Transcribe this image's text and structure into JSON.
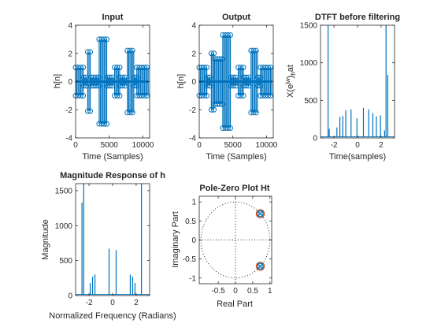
{
  "figure": {
    "colors": {
      "series": "#0072BD",
      "pole": "#D95319",
      "axis": "#262626",
      "background": "#ffffff"
    }
  },
  "chart_data": [
    {
      "type": "scatter",
      "title": "Input",
      "xlabel": "Time (Samples)",
      "ylabel": "h[n]",
      "xlim": [
        0,
        11000
      ],
      "ylim": [
        -4,
        4
      ],
      "xticks": [
        "0",
        "5000",
        "10000"
      ],
      "yticks": [
        "-4",
        "-2",
        "0",
        "2",
        "4"
      ],
      "marker": "circle-stem",
      "grid": false,
      "bands": [
        {
          "x": [
            0,
            1200
          ],
          "y": [
            -1,
            1
          ]
        },
        {
          "x": [
            1200,
            1800
          ],
          "y": [
            -0.3,
            0.3
          ]
        },
        {
          "x": [
            1800,
            2300
          ],
          "y": [
            -2.1,
            2.1
          ]
        },
        {
          "x": [
            2300,
            3500
          ],
          "y": [
            -0.3,
            0.3
          ]
        },
        {
          "x": [
            3500,
            4700
          ],
          "y": [
            -3,
            3
          ]
        },
        {
          "x": [
            4700,
            5800
          ],
          "y": [
            -0.3,
            0.3
          ]
        },
        {
          "x": [
            5800,
            6600
          ],
          "y": [
            -1,
            1
          ]
        },
        {
          "x": [
            6600,
            7700
          ],
          "y": [
            -0.3,
            0.3
          ]
        },
        {
          "x": [
            7700,
            8700
          ],
          "y": [
            -2.2,
            2.2
          ]
        },
        {
          "x": [
            8700,
            9100
          ],
          "y": [
            -0.3,
            0.3
          ]
        },
        {
          "x": [
            9100,
            10800
          ],
          "y": [
            -1,
            1
          ]
        }
      ]
    },
    {
      "type": "scatter",
      "title": "Output",
      "xlabel": "Time (Samples)",
      "ylabel": "h[n]",
      "xlim": [
        0,
        11000
      ],
      "ylim": [
        -4,
        4
      ],
      "xticks": [
        "0",
        "5000",
        "10000"
      ],
      "yticks": [
        "-4",
        "-2",
        "0",
        "2",
        "4"
      ],
      "marker": "circle-stem",
      "grid": false,
      "bands": [
        {
          "x": [
            0,
            1200
          ],
          "y": [
            -1,
            1
          ]
        },
        {
          "x": [
            1200,
            1800
          ],
          "y": [
            -0.3,
            0.3
          ]
        },
        {
          "x": [
            1800,
            2300
          ],
          "y": [
            -2,
            2
          ]
        },
        {
          "x": [
            2300,
            3500
          ],
          "y": [
            -1.6,
            1.6
          ]
        },
        {
          "x": [
            3500,
            4700
          ],
          "y": [
            -3.3,
            3.3
          ]
        },
        {
          "x": [
            4700,
            5800
          ],
          "y": [
            -0.3,
            0.3
          ]
        },
        {
          "x": [
            5800,
            6600
          ],
          "y": [
            -1,
            1
          ]
        },
        {
          "x": [
            6600,
            7700
          ],
          "y": [
            -0.3,
            0.3
          ]
        },
        {
          "x": [
            7700,
            8700
          ],
          "y": [
            -2.2,
            2.2
          ]
        },
        {
          "x": [
            8700,
            9100
          ],
          "y": [
            -0.3,
            0.3
          ]
        },
        {
          "x": [
            9100,
            10800
          ],
          "y": [
            -1,
            1
          ]
        }
      ]
    },
    {
      "type": "line",
      "title": "DTFT before filtering",
      "xlabel": "Time(samples)",
      "ylabel_parts": [
        "X(e",
        "jw",
        ")",
        "h",
        "at"
      ],
      "xlim": [
        -3.14159,
        3.14159
      ],
      "ylim": [
        0,
        1500
      ],
      "xticks": [
        "-2",
        "0",
        "2"
      ],
      "xtick_values": [
        -2,
        0,
        2
      ],
      "yticks": [
        "0",
        "500",
        "1000",
        "1500"
      ],
      "ytick_values": [
        0,
        500,
        1000,
        1500
      ],
      "baseline": 15,
      "grid": false,
      "spikes": [
        {
          "x": -2.5,
          "y": 1580
        },
        {
          "x": -2.4,
          "y": 120
        },
        {
          "x": -1.75,
          "y": 140
        },
        {
          "x": -1.5,
          "y": 280
        },
        {
          "x": -1.25,
          "y": 290
        },
        {
          "x": -1.0,
          "y": 370
        },
        {
          "x": -0.55,
          "y": 380
        },
        {
          "x": -0.05,
          "y": 260
        },
        {
          "x": 0.5,
          "y": 400
        },
        {
          "x": 0.95,
          "y": 380
        },
        {
          "x": 1.3,
          "y": 330
        },
        {
          "x": 1.6,
          "y": 290
        },
        {
          "x": 1.95,
          "y": 300
        },
        {
          "x": 2.3,
          "y": 100
        },
        {
          "x": 2.42,
          "y": 1580
        },
        {
          "x": 2.57,
          "y": 840
        }
      ]
    },
    {
      "type": "line",
      "title": "Magnitude Response of h",
      "xlabel": "Normalized Frequency (Radians)",
      "ylabel": "Magnitude",
      "xlim": [
        -3.14159,
        3.14159
      ],
      "ylim": [
        0,
        1600
      ],
      "xticks": [
        "-2",
        "0",
        "2"
      ],
      "xtick_values": [
        -2,
        0,
        2
      ],
      "yticks": [
        "0",
        "500",
        "1000",
        "1500"
      ],
      "ytick_values": [
        0,
        500,
        1000,
        1500
      ],
      "baseline": 15,
      "grid": false,
      "spikes": [
        {
          "x": -2.6,
          "y": 1330
        },
        {
          "x": -2.45,
          "y": 1650
        },
        {
          "x": -1.9,
          "y": 180
        },
        {
          "x": -1.7,
          "y": 270
        },
        {
          "x": -1.5,
          "y": 300
        },
        {
          "x": -0.3,
          "y": 670
        },
        {
          "x": 0.3,
          "y": 650
        },
        {
          "x": 1.5,
          "y": 300
        },
        {
          "x": 1.7,
          "y": 270
        },
        {
          "x": 1.9,
          "y": 180
        },
        {
          "x": 2.45,
          "y": 1650
        }
      ]
    },
    {
      "type": "scatter",
      "title": "Pole-Zero Plot Ht",
      "xlabel": "Real Part",
      "ylabel": "Imaginary Part",
      "xlim": [
        -1.05,
        1.05
      ],
      "ylim": [
        -1.15,
        1.15
      ],
      "xticks": [
        "-0.5",
        "0",
        "0.5",
        "1"
      ],
      "xtick_values": [
        -0.5,
        0,
        0.5,
        1
      ],
      "yticks": [
        "-1",
        "-0.5",
        "0",
        "0.5",
        "1"
      ],
      "ytick_values": [
        -1,
        -0.5,
        0,
        0.5,
        1
      ],
      "unit_circle": true,
      "grid": false,
      "zeros": [
        {
          "x": 0.72,
          "y": 0.69
        },
        {
          "x": 0.72,
          "y": -0.69
        }
      ],
      "poles": [
        {
          "x": 0.72,
          "y": 0.69
        },
        {
          "x": 0.72,
          "y": -0.69
        }
      ]
    }
  ]
}
